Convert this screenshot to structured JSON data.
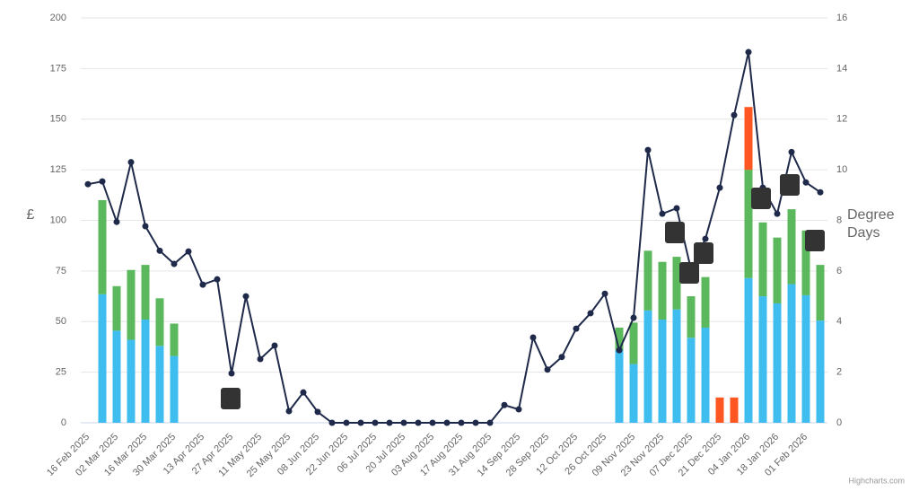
{
  "chart_data": {
    "type": "bar-line",
    "categories": [
      "16 Feb 2025",
      null,
      "02 Mar 2025",
      null,
      "16 Mar 2025",
      null,
      "30 Mar 2025",
      null,
      "13 Apr 2025",
      null,
      "27 Apr 2025",
      null,
      "11 May 2025",
      null,
      "25 May 2025",
      null,
      "08 Jun 2025",
      null,
      "22 Jun 2025",
      null,
      "06 Jul 2025",
      null,
      "20 Jul 2025",
      null,
      "03 Aug 2025",
      null,
      "17 Aug 2025",
      null,
      "31 Aug 2025",
      null,
      "14 Sep 2025",
      null,
      "28 Sep 2025",
      null,
      "12 Oct 2025",
      null,
      "26 Oct 2025",
      null,
      "09 Nov 2025",
      null,
      "23 Nov 2025",
      null,
      "07 Dec 2025",
      null,
      "21 Dec 2025",
      null,
      "04 Jan 2026",
      null,
      "18 Jan 2026",
      null,
      "01 Feb 2026",
      null
    ],
    "y_label": "£",
    "y2_label": "Degree Days",
    "credits": "Highcharts.com",
    "ylim": [
      0,
      200
    ],
    "yticks": [
      0,
      25,
      50,
      75,
      100,
      125,
      150,
      175,
      200
    ],
    "y2lim": [
      0,
      16
    ],
    "y2ticks": [
      0,
      2,
      4,
      6,
      8,
      10,
      12,
      14,
      16
    ],
    "grid": true,
    "series": [
      {
        "type": "bar",
        "color": "#3fbdee",
        "values": [
          null,
          63.5,
          45.5,
          41,
          51,
          38,
          33,
          null,
          null,
          null,
          null,
          null,
          null,
          null,
          null,
          null,
          null,
          null,
          null,
          null,
          null,
          null,
          null,
          null,
          null,
          null,
          null,
          null,
          null,
          null,
          null,
          null,
          null,
          null,
          null,
          null,
          null,
          36,
          29,
          55.5,
          51,
          56,
          42,
          47,
          null,
          null,
          71.5,
          62.5,
          59,
          68.5,
          63,
          50.5
        ]
      },
      {
        "type": "bar",
        "color": "#5cb85c",
        "values": [
          null,
          46.5,
          22,
          34.5,
          27,
          23.5,
          16,
          null,
          null,
          null,
          null,
          null,
          null,
          null,
          null,
          null,
          null,
          null,
          null,
          null,
          null,
          null,
          null,
          null,
          null,
          null,
          null,
          null,
          null,
          null,
          null,
          null,
          null,
          null,
          null,
          null,
          null,
          11,
          20.5,
          29.5,
          28.5,
          26,
          20.5,
          25,
          null,
          null,
          53.5,
          36.5,
          32.5,
          37,
          32,
          27.5
        ]
      },
      {
        "type": "bar",
        "color": "#ff5722",
        "values": [
          null,
          null,
          null,
          null,
          null,
          null,
          null,
          null,
          null,
          null,
          null,
          null,
          null,
          null,
          null,
          null,
          null,
          null,
          null,
          null,
          null,
          null,
          null,
          null,
          null,
          null,
          null,
          null,
          null,
          null,
          null,
          null,
          null,
          null,
          null,
          null,
          null,
          null,
          null,
          null,
          null,
          null,
          null,
          null,
          12.5,
          12.5,
          31,
          null,
          null,
          null,
          null,
          null
        ]
      },
      {
        "type": "line",
        "axis": "y2",
        "color": "#1f2a4a",
        "values": [
          9.43,
          9.54,
          7.94,
          10.3,
          7.77,
          6.8,
          6.28,
          6.77,
          5.46,
          5.67,
          1.95,
          5.0,
          2.52,
          3.05,
          0.46,
          1.2,
          0.43,
          0,
          0,
          0,
          0,
          0,
          0,
          0,
          0,
          0,
          0,
          0,
          0,
          0.7,
          0.53,
          3.37,
          2.1,
          2.6,
          3.72,
          4.33,
          5.1,
          2.87,
          4.15,
          10.78,
          8.26,
          8.48,
          6.06,
          7.27,
          9.29,
          12.16,
          14.65,
          9.29,
          8.26,
          10.7,
          9.5,
          9.11
        ]
      }
    ]
  }
}
